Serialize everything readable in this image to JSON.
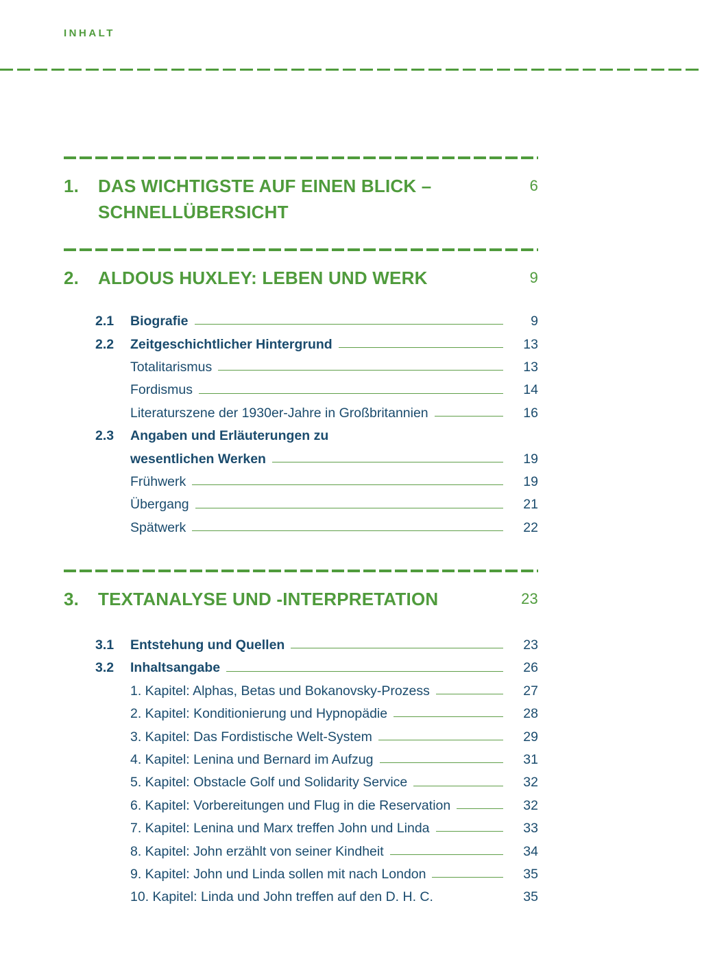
{
  "page": {
    "header": "INHALT"
  },
  "colors": {
    "accent_green": "#4f9b3c",
    "text_navy": "#1a4b6d",
    "leader_green": "#5f9f48",
    "background": "#ffffff"
  },
  "toc": {
    "sections": [
      {
        "number": "1.",
        "title_lines": [
          "DAS WICHTIGSTE AUF EINEN BLICK –",
          "SCHNELLÜBERSICHT"
        ],
        "page": "6",
        "entries": []
      },
      {
        "number": "2.",
        "title_lines": [
          "ALDOUS HUXLEY: LEBEN UND WERK"
        ],
        "page": "9",
        "entries": [
          {
            "num": "2.1",
            "label": "Biografie",
            "page": "9"
          },
          {
            "num": "2.2",
            "label": "Zeitgeschichtlicher Hintergrund",
            "page": "13"
          },
          {
            "num": "",
            "label": "Totalitarismus",
            "page": "13"
          },
          {
            "num": "",
            "label": "Fordismus",
            "page": "14"
          },
          {
            "num": "",
            "label": "Literaturszene der 1930er-Jahre in Großbritannien",
            "page": "16"
          },
          {
            "num": "2.3",
            "label": "Angaben und Erläuterungen zu",
            "page": ""
          },
          {
            "num": "",
            "label": "wesentlichen Werken",
            "page": "19"
          },
          {
            "num": "",
            "label": "Frühwerk",
            "page": "19"
          },
          {
            "num": "",
            "label": "Übergang",
            "page": "21"
          },
          {
            "num": "",
            "label": "Spätwerk",
            "page": "22"
          }
        ]
      },
      {
        "number": "3.",
        "title_lines": [
          "TEXTANALYSE UND -INTERPRETATION"
        ],
        "page": "23",
        "entries": [
          {
            "num": "3.1",
            "label": "Entstehung und Quellen",
            "page": "23"
          },
          {
            "num": "3.2",
            "label": "Inhaltsangabe",
            "page": "26"
          },
          {
            "num": "",
            "label": "1. Kapitel: Alphas, Betas und Bokanovsky-Prozess",
            "page": "27"
          },
          {
            "num": "",
            "label": "2. Kapitel: Konditionierung und Hypnopädie",
            "page": "28"
          },
          {
            "num": "",
            "label": "3. Kapitel: Das Fordistische Welt-System",
            "page": "29"
          },
          {
            "num": "",
            "label": "4. Kapitel: Lenina und Bernard im Aufzug",
            "page": "31"
          },
          {
            "num": "",
            "label": "5. Kapitel: Obstacle Golf und Solidarity Service",
            "page": "32"
          },
          {
            "num": "",
            "label": "6. Kapitel: Vorbereitungen und Flug in die Reservation",
            "page": "32"
          },
          {
            "num": "",
            "label": "7. Kapitel: Lenina und Marx treffen John und Linda",
            "page": "33"
          },
          {
            "num": "",
            "label": "8. Kapitel: John erzählt von seiner Kindheit",
            "page": "34"
          },
          {
            "num": "",
            "label": "9. Kapitel: John und Linda sollen mit nach London",
            "page": "35"
          },
          {
            "num": "",
            "label": "10. Kapitel: Linda und John treffen auf den D. H. C.",
            "page": "35"
          }
        ]
      }
    ]
  }
}
